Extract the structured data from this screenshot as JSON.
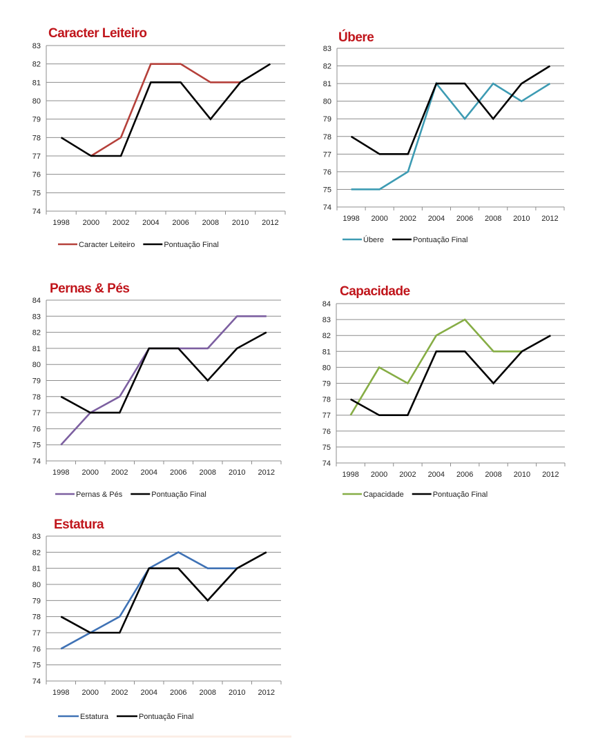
{
  "charts": [
    {
      "id": "caracter",
      "title": "Caracter Leiteiro",
      "line_color": "#b5403a"
    },
    {
      "id": "ubere",
      "title": "Úbere",
      "line_color": "#3d9bb3"
    },
    {
      "id": "pernas",
      "title": "Pernas & Pés",
      "line_color": "#7c5fa0"
    },
    {
      "id": "capacidade",
      "title": "Capacidade",
      "line_color": "#86ad45"
    },
    {
      "id": "estatura",
      "title": "Estatura",
      "line_color": "#3f72b5"
    }
  ],
  "chart_data": [
    {
      "type": "line",
      "title": "Caracter Leiteiro",
      "categories": [
        "1998",
        "2000",
        "2002",
        "2004",
        "2006",
        "2008",
        "2010",
        "2012"
      ],
      "ylim": [
        74,
        83
      ],
      "yticks": [
        74,
        75,
        76,
        77,
        78,
        79,
        80,
        81,
        82,
        83
      ],
      "grid": true,
      "legend_placement": "bottom",
      "series": [
        {
          "name": "Caracter Leiteiro",
          "color": "#b5403a",
          "values": [
            null,
            77,
            78,
            82,
            82,
            81,
            81,
            null
          ]
        },
        {
          "name": "Pontuação Final",
          "color": "#000000",
          "values": [
            78,
            77,
            77,
            81,
            81,
            79,
            81,
            82
          ]
        }
      ]
    },
    {
      "type": "line",
      "title": "Úbere",
      "categories": [
        "1998",
        "2000",
        "2002",
        "2004",
        "2006",
        "2008",
        "2010",
        "2012"
      ],
      "ylim": [
        74,
        83
      ],
      "yticks": [
        74,
        75,
        76,
        77,
        78,
        79,
        80,
        81,
        82,
        83
      ],
      "grid": true,
      "legend_placement": "bottom",
      "series": [
        {
          "name": "Úbere",
          "color": "#3d9bb3",
          "values": [
            75,
            75,
            76,
            81,
            79,
            81,
            80,
            81
          ]
        },
        {
          "name": "Pontuação Final",
          "color": "#000000",
          "values": [
            78,
            77,
            77,
            81,
            81,
            79,
            81,
            82
          ]
        }
      ]
    },
    {
      "type": "line",
      "title": "Pernas & Pés",
      "categories": [
        "1998",
        "2000",
        "2002",
        "2004",
        "2006",
        "2008",
        "2010",
        "2012"
      ],
      "ylim": [
        74,
        84
      ],
      "yticks": [
        74,
        75,
        76,
        77,
        78,
        79,
        80,
        81,
        82,
        83,
        84
      ],
      "grid": true,
      "legend_placement": "bottom",
      "series": [
        {
          "name": "Pernas & Pés",
          "color": "#7c5fa0",
          "values": [
            75,
            77,
            78,
            81,
            81,
            81,
            83,
            83
          ]
        },
        {
          "name": "Pontuação Final",
          "color": "#000000",
          "values": [
            78,
            77,
            77,
            81,
            81,
            79,
            81,
            82
          ]
        }
      ]
    },
    {
      "type": "line",
      "title": "Capacidade",
      "categories": [
        "1998",
        "2000",
        "2002",
        "2004",
        "2006",
        "2008",
        "2010",
        "2012"
      ],
      "ylim": [
        74,
        84
      ],
      "yticks": [
        74,
        75,
        76,
        77,
        78,
        79,
        80,
        81,
        82,
        83,
        84
      ],
      "grid": true,
      "legend_placement": "bottom",
      "series": [
        {
          "name": "Capacidade",
          "color": "#86ad45",
          "values": [
            77,
            80,
            79,
            82,
            83,
            81,
            81,
            null
          ]
        },
        {
          "name": "Pontuação Final",
          "color": "#000000",
          "values": [
            78,
            77,
            77,
            81,
            81,
            79,
            81,
            82
          ]
        }
      ]
    },
    {
      "type": "line",
      "title": "Estatura",
      "categories": [
        "1998",
        "2000",
        "2002",
        "2004",
        "2006",
        "2008",
        "2010",
        "2012"
      ],
      "ylim": [
        74,
        83
      ],
      "yticks": [
        74,
        75,
        76,
        77,
        78,
        79,
        80,
        81,
        82,
        83
      ],
      "grid": true,
      "legend_placement": "bottom",
      "series": [
        {
          "name": "Estatura",
          "color": "#3f72b5",
          "values": [
            76,
            77,
            78,
            81,
            82,
            81,
            81,
            null
          ]
        },
        {
          "name": "Pontuação Final",
          "color": "#000000",
          "values": [
            78,
            77,
            77,
            81,
            81,
            79,
            81,
            82
          ]
        }
      ]
    }
  ]
}
